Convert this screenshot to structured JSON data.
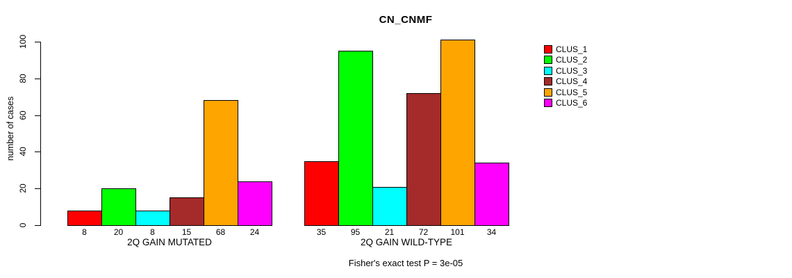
{
  "chart_data": {
    "type": "bar",
    "title": "CN_CNMF",
    "ylabel": "number of cases",
    "xlabel": "",
    "yticks": [
      0,
      20,
      40,
      60,
      80,
      100
    ],
    "axis_range": [
      0,
      100
    ],
    "grid": false,
    "legend_position": "right",
    "categories": [
      "CLUS_1",
      "CLUS_2",
      "CLUS_3",
      "CLUS_4",
      "CLUS_5",
      "CLUS_6"
    ],
    "series_colors": [
      "#FF0000",
      "#00FF00",
      "#00FFFF",
      "#A52A2A",
      "#FFA500",
      "#FF00FF"
    ],
    "bar_border_color": "#000000",
    "groups": [
      {
        "label": "2Q GAIN MUTATED",
        "values": [
          8,
          20,
          8,
          15,
          68,
          24
        ]
      },
      {
        "label": "2Q GAIN WILD-TYPE",
        "values": [
          35,
          95,
          21,
          72,
          101,
          34
        ]
      }
    ],
    "legend": [
      {
        "label": "CLUS_1",
        "color": "#FF0000"
      },
      {
        "label": "CLUS_2",
        "color": "#00FF00"
      },
      {
        "label": "CLUS_3",
        "color": "#00FFFF"
      },
      {
        "label": "CLUS_4",
        "color": "#A52A2A"
      },
      {
        "label": "CLUS_5",
        "color": "#FFA500"
      },
      {
        "label": "CLUS_6",
        "color": "#FF00FF"
      }
    ],
    "footnote": "Fisher's exact test P = 3e-05",
    "value_labels_shown": true
  }
}
